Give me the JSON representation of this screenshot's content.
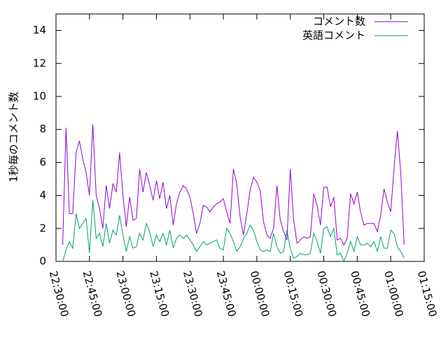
{
  "chart_data": {
    "type": "line",
    "title": "",
    "xlabel": "",
    "ylabel": "1秒毎のコメント数",
    "ylim": [
      0,
      15
    ],
    "yticks": [
      0,
      2,
      4,
      6,
      8,
      10,
      12,
      14
    ],
    "xlim_minutes": [
      0,
      165
    ],
    "xtick_labels": [
      "22:30:00",
      "22:45:00",
      "23:00:00",
      "23:15:00",
      "23:30:00",
      "23:45:00",
      "00:00:00",
      "00:15:00",
      "00:30:00",
      "00:45:00",
      "01:00:00",
      "01:15:00"
    ],
    "xtick_minutes": [
      0,
      15,
      30,
      45,
      60,
      75,
      90,
      105,
      120,
      135,
      150,
      165
    ],
    "legend_position": "top-right",
    "grid": false,
    "series": [
      {
        "name": "コメント数",
        "color": "#9400d3",
        "points": [
          [
            3,
            1.0
          ],
          [
            4.5,
            8.1
          ],
          [
            6,
            2.9
          ],
          [
            7.5,
            2.9
          ],
          [
            9,
            6.6
          ],
          [
            10.5,
            7.3
          ],
          [
            12,
            6.2
          ],
          [
            13.5,
            5.4
          ],
          [
            15,
            4.0
          ],
          [
            16.5,
            8.3
          ],
          [
            18,
            4.0
          ],
          [
            19.5,
            3.2
          ],
          [
            21,
            2.0
          ],
          [
            22.5,
            4.6
          ],
          [
            24,
            3.2
          ],
          [
            25.5,
            4.7
          ],
          [
            27,
            4.2
          ],
          [
            28.5,
            6.6
          ],
          [
            30,
            4.0
          ],
          [
            31.5,
            2.1
          ],
          [
            33,
            3.9
          ],
          [
            34.5,
            2.5
          ],
          [
            36,
            2.6
          ],
          [
            37.5,
            5.6
          ],
          [
            39,
            4.2
          ],
          [
            40.5,
            5.4
          ],
          [
            42,
            4.6
          ],
          [
            43.5,
            3.7
          ],
          [
            45,
            4.9
          ],
          [
            46.5,
            3.8
          ],
          [
            48,
            4.8
          ],
          [
            49.5,
            3.2
          ],
          [
            51,
            4.0
          ],
          [
            52.5,
            2.2
          ],
          [
            54,
            3.5
          ],
          [
            55.5,
            4.2
          ],
          [
            57,
            4.6
          ],
          [
            58.5,
            4.4
          ],
          [
            60,
            3.9
          ],
          [
            61.5,
            2.9
          ],
          [
            63,
            1.7
          ],
          [
            64.5,
            2.3
          ],
          [
            66,
            3.4
          ],
          [
            67.5,
            3.3
          ],
          [
            69,
            3.0
          ],
          [
            70.5,
            3.3
          ],
          [
            72,
            3.5
          ],
          [
            73.5,
            3.6
          ],
          [
            75,
            3.8
          ],
          [
            76.5,
            3.0
          ],
          [
            78,
            2.3
          ],
          [
            79.5,
            5.6
          ],
          [
            81,
            4.7
          ],
          [
            82.5,
            2.7
          ],
          [
            84,
            1.6
          ],
          [
            85.5,
            2.9
          ],
          [
            87,
            4.3
          ],
          [
            88.5,
            5.1
          ],
          [
            90,
            4.8
          ],
          [
            91.5,
            4.3
          ],
          [
            93,
            2.4
          ],
          [
            94.5,
            1.6
          ],
          [
            96,
            1.4
          ],
          [
            97.5,
            2.0
          ],
          [
            99,
            4.6
          ],
          [
            100.5,
            2.5
          ],
          [
            102,
            1.8
          ],
          [
            103.5,
            1.3
          ],
          [
            105,
            5.6
          ],
          [
            106.5,
            2.5
          ],
          [
            108,
            1.1
          ],
          [
            109.5,
            1.3
          ],
          [
            111,
            1.5
          ],
          [
            112.5,
            1.4
          ],
          [
            114,
            1.5
          ],
          [
            115.5,
            4.1
          ],
          [
            117,
            3.4
          ],
          [
            118.5,
            2.2
          ],
          [
            120,
            4.5
          ],
          [
            121.5,
            4.5
          ],
          [
            123,
            3.3
          ],
          [
            124.5,
            3.9
          ],
          [
            126,
            1.3
          ],
          [
            127.5,
            1.4
          ],
          [
            129,
            1.0
          ],
          [
            130.5,
            1.4
          ],
          [
            132,
            4.1
          ],
          [
            133.5,
            3.5
          ],
          [
            135,
            4.2
          ],
          [
            136.5,
            3.0
          ],
          [
            138,
            2.2
          ],
          [
            139.5,
            2.3
          ],
          [
            141,
            2.3
          ],
          [
            142.5,
            2.3
          ],
          [
            144,
            1.8
          ],
          [
            145.5,
            2.8
          ],
          [
            147,
            4.4
          ],
          [
            148.5,
            3.6
          ],
          [
            150,
            3.0
          ],
          [
            151.5,
            5.7
          ],
          [
            153,
            7.9
          ],
          [
            154.5,
            5.4
          ],
          [
            156,
            1.0
          ]
        ]
      },
      {
        "name": "英語コメント",
        "color": "#009e73",
        "points": [
          [
            3,
            0.0
          ],
          [
            4.5,
            0.7
          ],
          [
            6,
            1.2
          ],
          [
            7.5,
            0.8
          ],
          [
            9,
            2.9
          ],
          [
            10.5,
            2.0
          ],
          [
            12,
            2.3
          ],
          [
            13.5,
            2.6
          ],
          [
            15,
            0.5
          ],
          [
            16.5,
            3.7
          ],
          [
            18,
            1.4
          ],
          [
            19.5,
            1.7
          ],
          [
            21,
            0.9
          ],
          [
            22.5,
            2.3
          ],
          [
            24,
            1.1
          ],
          [
            25.5,
            1.9
          ],
          [
            27,
            1.6
          ],
          [
            28.5,
            2.8
          ],
          [
            30,
            1.6
          ],
          [
            31.5,
            0.6
          ],
          [
            33,
            1.5
          ],
          [
            34.5,
            0.8
          ],
          [
            36,
            0.9
          ],
          [
            37.5,
            1.7
          ],
          [
            39,
            1.3
          ],
          [
            40.5,
            2.3
          ],
          [
            42,
            1.8
          ],
          [
            43.5,
            0.9
          ],
          [
            45,
            1.6
          ],
          [
            46.5,
            1.2
          ],
          [
            48,
            1.7
          ],
          [
            49.5,
            1.0
          ],
          [
            51,
            1.9
          ],
          [
            52.5,
            0.8
          ],
          [
            54,
            1.4
          ],
          [
            55.5,
            1.6
          ],
          [
            57,
            1.4
          ],
          [
            58.5,
            1.6
          ],
          [
            60,
            1.3
          ],
          [
            61.5,
            1.0
          ],
          [
            63,
            0.6
          ],
          [
            64.5,
            0.9
          ],
          [
            66,
            1.2
          ],
          [
            67.5,
            1.0
          ],
          [
            69,
            1.1
          ],
          [
            70.5,
            1.2
          ],
          [
            72,
            1.3
          ],
          [
            73.5,
            0.8
          ],
          [
            75,
            0.7
          ],
          [
            76.5,
            2.0
          ],
          [
            78,
            1.7
          ],
          [
            79.5,
            1.2
          ],
          [
            81,
            0.6
          ],
          [
            82.5,
            0.9
          ],
          [
            84,
            1.4
          ],
          [
            85.5,
            1.7
          ],
          [
            87,
            2.2
          ],
          [
            88.5,
            1.9
          ],
          [
            90,
            1.2
          ],
          [
            91.5,
            0.7
          ],
          [
            93,
            0.6
          ],
          [
            94.5,
            0.7
          ],
          [
            96,
            0.6
          ],
          [
            97.5,
            1.7
          ],
          [
            99,
            0.9
          ],
          [
            100.5,
            0.5
          ],
          [
            102,
            0.6
          ],
          [
            103.5,
            1.9
          ],
          [
            105,
            0.8
          ],
          [
            106.5,
            0.2
          ],
          [
            108,
            0.3
          ],
          [
            109.5,
            0.5
          ],
          [
            111,
            0.4
          ],
          [
            112.5,
            0.4
          ],
          [
            114,
            0.5
          ],
          [
            115.5,
            1.7
          ],
          [
            117,
            1.2
          ],
          [
            118.5,
            0.5
          ],
          [
            120,
            2.0
          ],
          [
            121.5,
            2.1
          ],
          [
            123,
            1.5
          ],
          [
            124.5,
            2.0
          ],
          [
            126,
            0.4
          ],
          [
            127.5,
            0.5
          ],
          [
            129,
            0.0
          ],
          [
            130.5,
            0.5
          ],
          [
            132,
            1.2
          ],
          [
            133.5,
            0.6
          ],
          [
            135,
            1.5
          ],
          [
            136.5,
            1.0
          ],
          [
            138,
            1.0
          ],
          [
            139.5,
            1.1
          ],
          [
            141,
            0.9
          ],
          [
            142.5,
            1.2
          ],
          [
            144,
            0.6
          ],
          [
            145.5,
            1.5
          ],
          [
            147,
            0.8
          ],
          [
            148.5,
            0.8
          ],
          [
            150,
            1.9
          ],
          [
            151.5,
            1.7
          ],
          [
            153,
            0.9
          ],
          [
            154.5,
            0.6
          ],
          [
            156,
            0.2
          ]
        ]
      }
    ]
  }
}
